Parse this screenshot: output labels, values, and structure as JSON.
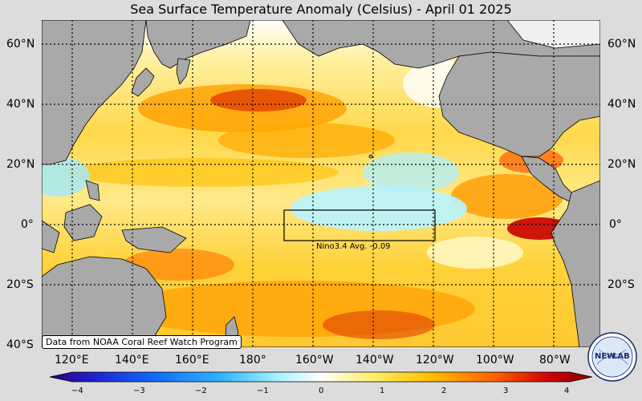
{
  "title": "Sea Surface Temperature Anomaly (Celsius) - April 01 2025",
  "lat_labels": [
    "60°N",
    "40°N",
    "20°N",
    "0°",
    "20°S",
    "40°S"
  ],
  "lon_labels": [
    "120°E",
    "140°E",
    "160°E",
    "180°",
    "160°W",
    "140°W",
    "120°W",
    "100°W",
    "80°W"
  ],
  "nino_label": "Nino3.4 Avg. -0.09",
  "credit": "Data from NOAA Coral Reef Watch Program",
  "colorbar": {
    "ticks": [
      "−4",
      "−3",
      "−2",
      "−1",
      "0",
      "1",
      "2",
      "3",
      "4"
    ],
    "min": -4,
    "max": 4
  },
  "logo": {
    "text_left": "NEW",
    "text_right": "LAB"
  },
  "colors": {
    "land": "#a9a9a9",
    "ocean_base": "#ffe28a",
    "warm": "#ffb000",
    "hot": "#d40000",
    "cool": "#a8f0ff",
    "cold": "#1e2fd8"
  }
}
